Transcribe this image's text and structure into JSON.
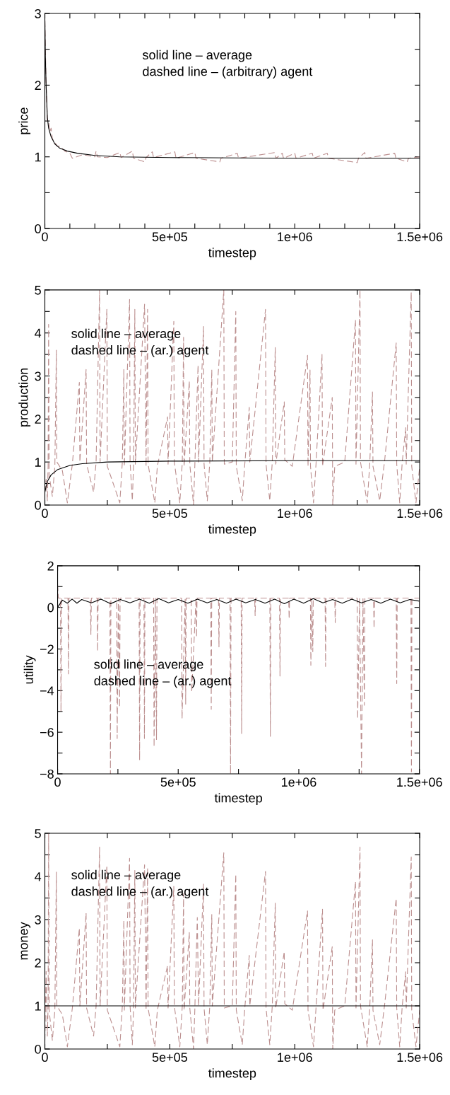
{
  "chart_data": [
    {
      "type": "line",
      "xlabel": "timestep",
      "ylabel": "price",
      "xlim": [
        0,
        1500000
      ],
      "ylim": [
        0,
        3
      ],
      "xticks": [
        {
          "value": 0,
          "label": "0"
        },
        {
          "value": 100000,
          "label": null
        },
        {
          "value": 200000,
          "label": null
        },
        {
          "value": 300000,
          "label": null
        },
        {
          "value": 400000,
          "label": null
        },
        {
          "value": 500000,
          "label": "5e+05"
        },
        {
          "value": 600000,
          "label": null
        },
        {
          "value": 700000,
          "label": null
        },
        {
          "value": 800000,
          "label": null
        },
        {
          "value": 900000,
          "label": null
        },
        {
          "value": 1000000,
          "label": "1e+06"
        },
        {
          "value": 1100000,
          "label": null
        },
        {
          "value": 1200000,
          "label": null
        },
        {
          "value": 1300000,
          "label": null
        },
        {
          "value": 1400000,
          "label": null
        },
        {
          "value": 1500000,
          "label": "1.5e+06"
        }
      ],
      "yticks": [
        0,
        {
          "value": 0.5,
          "label": null
        },
        1,
        {
          "value": 1.5,
          "label": null
        },
        2,
        {
          "value": 2.5,
          "label": null
        },
        3
      ],
      "annotations": [
        "solid line – average\ndashed line – (arbitrary) agent"
      ],
      "series": [
        {
          "color": "#bc8f8f",
          "line_style": "dashed",
          "x": [
            0,
            5000,
            10000,
            15000,
            20000,
            25000,
            30000,
            40000,
            50000,
            60000,
            80000,
            100000,
            110000,
            150000,
            200000,
            205000,
            210000,
            250000,
            300000,
            305000,
            350000,
            355000,
            400000,
            405000,
            430000,
            435000,
            520000,
            525000,
            600000,
            605000,
            700000,
            705000,
            770000,
            775000,
            920000,
            925000,
            950000,
            955000,
            1000000,
            1005000,
            1070000,
            1075000,
            1130000,
            1135000,
            1250000,
            1255000,
            1280000,
            1285000,
            1400000,
            1405000,
            1450000,
            1455000,
            1500000
          ],
          "values": [
            2.9,
            2.0,
            1.5,
            1.5,
            1.35,
            1.4,
            1.25,
            1.2,
            1.15,
            1.15,
            1.08,
            1.05,
            0.98,
            1.03,
            1.0,
            1.08,
            1.0,
            0.99,
            1.06,
            0.99,
            1.08,
            0.98,
            0.93,
            0.99,
            1.07,
            0.99,
            1.07,
            0.98,
            1.06,
            0.98,
            0.93,
            0.98,
            1.05,
            0.98,
            1.06,
            0.98,
            1.05,
            0.98,
            1.05,
            0.98,
            1.05,
            0.98,
            1.05,
            0.98,
            0.92,
            0.98,
            1.06,
            0.98,
            1.05,
            0.98,
            0.93,
            0.98,
            1.0
          ]
        },
        {
          "color": "#000000",
          "line_style": "solid",
          "x": [
            0,
            2000,
            5000,
            10000,
            15000,
            25000,
            40000,
            60000,
            90000,
            130000,
            200000,
            300000,
            500000,
            1000000,
            1500000
          ],
          "values": [
            2.9,
            2.4,
            2.0,
            1.55,
            1.4,
            1.28,
            1.18,
            1.12,
            1.08,
            1.05,
            1.02,
            1.0,
            0.99,
            0.98,
            0.98
          ]
        }
      ]
    },
    {
      "type": "line",
      "xlabel": "timestep",
      "ylabel": "production",
      "xlim": [
        0,
        1500000
      ],
      "ylim": [
        0,
        5
      ],
      "xticks": [
        {
          "value": 0,
          "label": "0"
        },
        {
          "value": 250000,
          "label": null
        },
        {
          "value": 500000,
          "label": "5e+05"
        },
        {
          "value": 750000,
          "label": null
        },
        {
          "value": 1000000,
          "label": "1e+06"
        },
        {
          "value": 1250000,
          "label": null
        },
        {
          "value": 1500000,
          "label": "1.5e+06"
        }
      ],
      "yticks": [
        0,
        {
          "value": 0.5,
          "label": null
        },
        1,
        {
          "value": 1.5,
          "label": null
        },
        2,
        {
          "value": 2.5,
          "label": null
        },
        3,
        {
          "value": 3.5,
          "label": null
        },
        4,
        {
          "value": 4.5,
          "label": null
        },
        5
      ],
      "annotations": [
        "solid line – average\ndashed line – (ar.) agent"
      ],
      "series": [
        {
          "color": "#bc8f8f",
          "line_style": "dashed",
          "x": [
            0,
            5000,
            10000,
            13000,
            15000,
            17000,
            30000,
            40000,
            46000,
            48000,
            70000,
            90000,
            110000,
            138000,
            140000,
            165000,
            167000,
            195000,
            205000,
            219000,
            221000,
            248000,
            250000,
            300000,
            310000,
            316000,
            318000,
            339000,
            341000,
            350000,
            355000,
            360000,
            362000,
            399000,
            405000,
            411000,
            413000,
            440000,
            450000,
            491000,
            493000,
            516000,
            518000,
            540000,
            550000,
            555000,
            557000,
            578000,
            580000,
            595000,
            600000,
            613000,
            615000,
            635000,
            637000,
            650000,
            660000,
            668000,
            670000,
            716000,
            718000,
            750000,
            764000,
            766000,
            790000,
            800000,
            818000,
            820000,
            883000,
            885000,
            900000,
            910000,
            922000,
            924000,
            958000,
            960000,
            990000,
            1051000,
            1053000,
            1061000,
            1063000,
            1075000,
            1085000,
            1109000,
            1111000,
            1150000,
            1152000,
            1160000,
            1200000,
            1243000,
            1245000,
            1261000,
            1263000,
            1290000,
            1300000,
            1311000,
            1313000,
            1340000,
            1360000,
            1406000,
            1408000,
            1420000,
            1430000,
            1444000,
            1446000,
            1466000,
            1468000,
            1485000,
            1500000
          ],
          "values": [
            0.3,
            0.6,
            0.1,
            0.9,
            4.2,
            0.7,
            0.2,
            0.9,
            3.6,
            1.0,
            0.8,
            0.05,
            0.95,
            2.85,
            1.0,
            3.15,
            0.95,
            0.3,
            1.0,
            5.0,
            1.0,
            4.55,
            0.9,
            0.05,
            1.0,
            3.15,
            0.9,
            4.78,
            1.0,
            0.1,
            0.95,
            4.55,
            0.95,
            4.67,
            0.9,
            4.55,
            0.95,
            0.05,
            0.9,
            2.05,
            0.95,
            4.27,
            1.0,
            0.05,
            1.0,
            3.9,
            0.9,
            2.88,
            0.95,
            0.0,
            0.9,
            3.25,
            1.0,
            4.15,
            0.95,
            0.1,
            1.0,
            3.15,
            1.0,
            5.0,
            0.95,
            1.0,
            4.5,
            0.9,
            0.1,
            0.95,
            2.27,
            1.0,
            4.55,
            0.95,
            0.1,
            1.0,
            3.66,
            0.95,
            2.4,
            1.05,
            0.9,
            3.48,
            0.9,
            3.14,
            0.9,
            0.05,
            0.95,
            3.5,
            0.9,
            2.5,
            0.0,
            0.9,
            1.0,
            4.3,
            0.95,
            5.0,
            1.0,
            0.05,
            0.95,
            2.63,
            0.9,
            0.1,
            1.05,
            3.77,
            0.95,
            0.05,
            1.0,
            1.8,
            0.95,
            4.95,
            0.9,
            0.05,
            0.9
          ]
        },
        {
          "color": "#000000",
          "line_style": "solid",
          "x": [
            0,
            10000,
            25000,
            50000,
            100000,
            150000,
            250000,
            500000,
            1000000,
            1500000
          ],
          "values": [
            0.3,
            0.55,
            0.7,
            0.82,
            0.92,
            0.96,
            1.0,
            1.02,
            1.03,
            1.03
          ]
        }
      ]
    },
    {
      "type": "line",
      "xlabel": "timestep",
      "ylabel": "utility",
      "xlim": [
        0,
        1500000
      ],
      "ylim": [
        -8,
        2
      ],
      "xticks": [
        {
          "value": 0,
          "label": "0"
        },
        {
          "value": 250000,
          "label": null
        },
        {
          "value": 500000,
          "label": "5e+05"
        },
        {
          "value": 750000,
          "label": null
        },
        {
          "value": 1000000,
          "label": "1e+06"
        },
        {
          "value": 1250000,
          "label": null
        },
        {
          "value": 1500000,
          "label": "1.5e+06"
        }
      ],
      "yticks": [
        {
          "value": -8,
          "label": "−8"
        },
        {
          "value": -7,
          "label": null
        },
        {
          "value": -6,
          "label": "−6"
        },
        {
          "value": -5,
          "label": null
        },
        {
          "value": -4,
          "label": "−4"
        },
        {
          "value": -3,
          "label": null
        },
        {
          "value": -2,
          "label": "−2"
        },
        {
          "value": -1,
          "label": null
        },
        0,
        {
          "value": 1,
          "label": null
        },
        2
      ],
      "annotations": [
        "solid line – average\ndashed line – (ar.) agent"
      ],
      "series": [
        {
          "color": "#bc8f8f",
          "line_style": "dashed",
          "x": [
            0,
            3000,
            12000,
            14000,
            16000,
            43000,
            45000,
            47000,
            136000,
            138000,
            140000,
            164000,
            166000,
            168000,
            217000,
            219000,
            221000,
            245000,
            247000,
            252000,
            257000,
            259000,
            338000,
            340000,
            342000,
            358000,
            360000,
            362000,
            398000,
            400000,
            405000,
            410000,
            412000,
            514000,
            516000,
            529000,
            531000,
            533000,
            554000,
            556000,
            574000,
            576000,
            578000,
            635000,
            637000,
            639000,
            667000,
            669000,
            671000,
            715000,
            717000,
            719000,
            761000,
            763000,
            765000,
            817000,
            819000,
            821000,
            880000,
            882000,
            884000,
            920000,
            922000,
            924000,
            958000,
            960000,
            962000,
            1048000,
            1050000,
            1054000,
            1058000,
            1060000,
            1109000,
            1111000,
            1113000,
            1149000,
            1151000,
            1153000,
            1242000,
            1244000,
            1252000,
            1260000,
            1266000,
            1272000,
            1274000,
            1310000,
            1312000,
            1314000,
            1404000,
            1406000,
            1408000,
            1465000,
            1467000,
            1469000,
            1500000
          ],
          "values": [
            1.1,
            0.45,
            0.45,
            -5.0,
            0.45,
            0.45,
            -3.2,
            0.45,
            0.45,
            -1.3,
            0.45,
            0.45,
            -2.1,
            0.45,
            0.45,
            -8.0,
            0.45,
            0.45,
            -6.3,
            0.45,
            -4.8,
            0.45,
            0.45,
            -7.35,
            0.45,
            0.45,
            -6.3,
            0.45,
            0.45,
            -6.7,
            0.45,
            -6.35,
            0.45,
            0.45,
            -5.35,
            0.45,
            -4.65,
            0.45,
            0.45,
            -4.07,
            0.45,
            -1.43,
            0.45,
            0.45,
            -4.9,
            0.45,
            0.45,
            -1.9,
            0.45,
            0.45,
            -8.0,
            0.45,
            0.45,
            -6.06,
            0.45,
            0.45,
            -0.4,
            0.45,
            0.45,
            -6.2,
            0.45,
            0.45,
            -3.3,
            0.45,
            0.45,
            -0.55,
            0.45,
            0.45,
            -2.78,
            0.45,
            -2.13,
            0.45,
            0.45,
            -2.84,
            0.45,
            0.45,
            -0.73,
            0.45,
            0.45,
            -5.35,
            0.45,
            -8.0,
            0.45,
            -4.7,
            0.45,
            0.45,
            -1.0,
            0.45,
            0.45,
            -3.66,
            0.45,
            0.45,
            -7.9,
            0.45,
            0.45
          ]
        },
        {
          "color": "#000000",
          "line_style": "solid",
          "x": [
            0,
            20000,
            40000,
            60000,
            80000,
            100000,
            140000,
            180000,
            220000,
            260000,
            300000,
            340000,
            380000,
            420000,
            460000,
            500000,
            540000,
            580000,
            620000,
            660000,
            700000,
            740000,
            780000,
            820000,
            860000,
            900000,
            940000,
            980000,
            1020000,
            1060000,
            1100000,
            1140000,
            1180000,
            1220000,
            1260000,
            1300000,
            1340000,
            1380000,
            1420000,
            1460000,
            1500000
          ],
          "values": [
            0.0,
            0.35,
            0.2,
            0.4,
            0.2,
            0.38,
            0.22,
            0.4,
            0.18,
            0.38,
            0.22,
            0.4,
            0.2,
            0.42,
            0.22,
            0.38,
            0.2,
            0.4,
            0.22,
            0.38,
            0.2,
            0.4,
            0.22,
            0.38,
            0.2,
            0.4,
            0.18,
            0.4,
            0.2,
            0.42,
            0.22,
            0.38,
            0.2,
            0.4,
            0.22,
            0.38,
            0.2,
            0.4,
            0.22,
            0.38,
            0.3
          ]
        }
      ]
    },
    {
      "type": "line",
      "xlabel": "timestep",
      "ylabel": "money",
      "xlim": [
        0,
        1500000
      ],
      "ylim": [
        0,
        5
      ],
      "xticks": [
        {
          "value": 0,
          "label": "0"
        },
        {
          "value": 250000,
          "label": null
        },
        {
          "value": 500000,
          "label": "5e+05"
        },
        {
          "value": 750000,
          "label": null
        },
        {
          "value": 1000000,
          "label": "1e+06"
        },
        {
          "value": 1250000,
          "label": null
        },
        {
          "value": 1500000,
          "label": "1.5e+06"
        }
      ],
      "yticks": [
        0,
        {
          "value": 0.5,
          "label": null
        },
        1,
        {
          "value": 1.5,
          "label": null
        },
        2,
        {
          "value": 2.5,
          "label": null
        },
        3,
        {
          "value": 3.5,
          "label": null
        },
        4,
        {
          "value": 4.5,
          "label": null
        },
        5
      ],
      "annotations": [
        "solid line – average\ndashed line – (ar.) agent"
      ],
      "series": [
        {
          "color": "#bc8f8f",
          "line_style": "dashed",
          "x": [
            0,
            5000,
            10000,
            13000,
            15000,
            17000,
            30000,
            40000,
            46000,
            48000,
            70000,
            90000,
            110000,
            138000,
            140000,
            165000,
            167000,
            195000,
            205000,
            219000,
            221000,
            248000,
            250000,
            300000,
            310000,
            316000,
            318000,
            339000,
            341000,
            350000,
            355000,
            360000,
            362000,
            399000,
            405000,
            411000,
            413000,
            440000,
            450000,
            491000,
            493000,
            516000,
            518000,
            540000,
            550000,
            555000,
            557000,
            578000,
            580000,
            595000,
            600000,
            610000,
            615000,
            635000,
            637000,
            650000,
            660000,
            668000,
            670000,
            716000,
            718000,
            750000,
            764000,
            766000,
            790000,
            800000,
            818000,
            820000,
            883000,
            885000,
            900000,
            910000,
            922000,
            924000,
            958000,
            960000,
            990000,
            1051000,
            1053000,
            1075000,
            1085000,
            1111000,
            1113000,
            1150000,
            1152000,
            1160000,
            1200000,
            1243000,
            1245000,
            1261000,
            1263000,
            1290000,
            1300000,
            1311000,
            1313000,
            1340000,
            1360000,
            1406000,
            1408000,
            1420000,
            1430000,
            1444000,
            1446000,
            1466000,
            1468000,
            1485000,
            1500000
          ],
          "values": [
            0.2,
            1.8,
            0.3,
            1.0,
            5.0,
            0.9,
            0.2,
            0.9,
            4.1,
            1.0,
            0.8,
            0.05,
            0.95,
            2.8,
            1.0,
            3.15,
            0.95,
            0.3,
            1.0,
            4.68,
            1.0,
            4.25,
            0.9,
            0.05,
            1.0,
            2.98,
            0.9,
            4.42,
            1.0,
            0.1,
            0.95,
            4.14,
            0.95,
            4.27,
            0.9,
            4.2,
            0.95,
            0.05,
            0.9,
            1.93,
            0.95,
            3.77,
            1.0,
            0.05,
            1.0,
            3.6,
            0.9,
            2.7,
            0.95,
            0.0,
            0.9,
            3.05,
            1.0,
            3.83,
            0.95,
            0.1,
            1.0,
            3.12,
            1.0,
            4.55,
            0.95,
            1.0,
            4.05,
            0.9,
            0.1,
            0.95,
            2.17,
            1.0,
            4.12,
            0.95,
            0.1,
            1.0,
            3.38,
            0.95,
            2.26,
            1.05,
            0.9,
            3.2,
            0.9,
            0.05,
            0.95,
            3.24,
            0.9,
            2.37,
            0.0,
            0.9,
            1.0,
            3.88,
            0.95,
            4.68,
            1.0,
            0.05,
            0.95,
            2.53,
            0.9,
            0.1,
            1.05,
            3.49,
            0.95,
            0.05,
            1.0,
            1.79,
            0.95,
            4.45,
            0.9,
            0.05,
            0.9
          ]
        },
        {
          "color": "#000000",
          "line_style": "solid",
          "x": [
            0,
            1500000
          ],
          "values": [
            1.0,
            1.0
          ]
        }
      ]
    }
  ]
}
